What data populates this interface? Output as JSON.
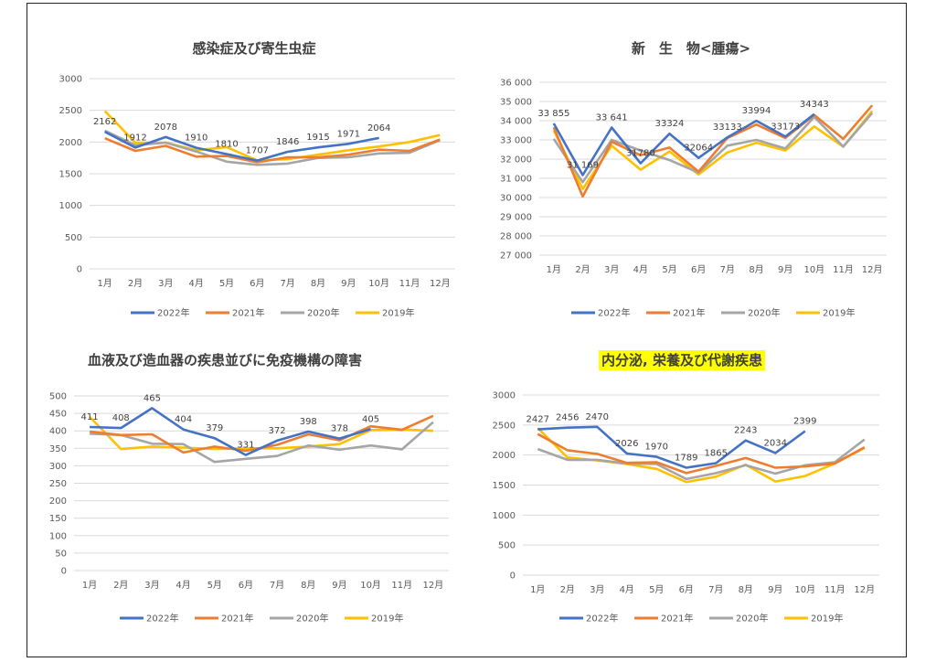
{
  "colors": {
    "2022": "#4472C4",
    "2021": "#ED7D31",
    "2020": "#A5A5A5",
    "2019": "#FFC000",
    "highlight": "#FFFF00"
  },
  "chart_data": [
    {
      "type": "line",
      "title": "感染症及び寄生虫症",
      "categories": [
        "1月",
        "2月",
        "3月",
        "4月",
        "5月",
        "6月",
        "7月",
        "8月",
        "9月",
        "10月",
        "11月",
        "12月"
      ],
      "ylim": [
        0,
        3000
      ],
      "yticks": [
        "0",
        "500",
        "1000",
        "1500",
        "2000",
        "2500",
        "3000"
      ],
      "yticks_values": [
        0,
        500,
        1000,
        1500,
        2000,
        2500,
        3000
      ],
      "grid": true,
      "legend": "bottom",
      "series": [
        {
          "name": "2022年",
          "values": [
            2162,
            1912,
            2078,
            1910,
            1810,
            1707,
            1846,
            1915,
            1971,
            2064,
            null,
            null
          ],
          "labels": [
            "2162",
            "1912",
            "2078",
            "1910",
            "1810",
            "1707",
            "1846",
            "1915",
            "1971",
            "2064",
            "",
            ""
          ]
        },
        {
          "name": "2021年",
          "values": [
            2060,
            1860,
            1940,
            1770,
            1780,
            1680,
            1760,
            1760,
            1800,
            1880,
            1860,
            2040
          ]
        },
        {
          "name": "2020年",
          "values": [
            2180,
            1950,
            1990,
            1850,
            1690,
            1640,
            1660,
            1750,
            1760,
            1820,
            1830,
            2030
          ]
        },
        {
          "name": "2019年",
          "values": [
            2490,
            1990,
            1990,
            1870,
            1920,
            1710,
            1730,
            1800,
            1870,
            1930,
            2000,
            2110
          ]
        }
      ]
    },
    {
      "type": "line",
      "title": "新　生　物<腫瘍>",
      "categories": [
        "1月",
        "2月",
        "3月",
        "4月",
        "5月",
        "6月",
        "7月",
        "8月",
        "9月",
        "10月",
        "11月",
        "12月"
      ],
      "ylim": [
        27000,
        36000
      ],
      "yticks": [
        "27 000",
        "28 000",
        "29 000",
        "30 000",
        "31 000",
        "32 000",
        "33 000",
        "34 000",
        "35 000",
        "36 000"
      ],
      "yticks_values": [
        27000,
        28000,
        29000,
        30000,
        31000,
        32000,
        33000,
        34000,
        35000,
        36000
      ],
      "grid": true,
      "legend": "bottom",
      "series": [
        {
          "name": "2022年",
          "values": [
            33855,
            31169,
            33641,
            31780,
            33324,
            32064,
            33133,
            33994,
            33173,
            34343,
            null,
            null
          ],
          "labels": [
            "33 855",
            "31 169",
            "33 641",
            "31780",
            "33324",
            "32064",
            "33133",
            "33994",
            "33173",
            "34343",
            "",
            ""
          ]
        },
        {
          "name": "2021年",
          "values": [
            33650,
            30050,
            32900,
            32200,
            32600,
            31350,
            33100,
            33800,
            33100,
            34300,
            33050,
            34800
          ]
        },
        {
          "name": "2020年",
          "values": [
            33050,
            30800,
            33000,
            32450,
            31950,
            31300,
            32700,
            33000,
            32550,
            34200,
            32650,
            34400
          ]
        },
        {
          "name": "2019年",
          "values": [
            33500,
            30450,
            32700,
            31450,
            32400,
            31200,
            32350,
            32850,
            32450,
            33700,
            32650,
            34500
          ]
        }
      ]
    },
    {
      "type": "line",
      "title": "血液及び造血器の疾患並びに免疫機構の障害",
      "categories": [
        "1月",
        "2月",
        "3月",
        "4月",
        "5月",
        "6月",
        "7月",
        "8月",
        "9月",
        "10月",
        "11月",
        "12月"
      ],
      "ylim": [
        0,
        500
      ],
      "yticks": [
        "0",
        "50",
        "100",
        "150",
        "200",
        "250",
        "300",
        "350",
        "400",
        "450",
        "500"
      ],
      "yticks_values": [
        0,
        50,
        100,
        150,
        200,
        250,
        300,
        350,
        400,
        450,
        500
      ],
      "grid": true,
      "legend": "bottom",
      "series": [
        {
          "name": "2022年",
          "values": [
            411,
            408,
            465,
            404,
            379,
            331,
            372,
            398,
            378,
            405,
            null,
            null
          ],
          "labels": [
            "411",
            "408",
            "465",
            "404",
            "379",
            "331",
            "372",
            "398",
            "378",
            "405",
            "",
            ""
          ]
        },
        {
          "name": "2021年",
          "values": [
            398,
            388,
            390,
            338,
            355,
            343,
            360,
            390,
            373,
            413,
            403,
            443
          ]
        },
        {
          "name": "2020年",
          "values": [
            392,
            388,
            363,
            362,
            311,
            320,
            328,
            358,
            346,
            358,
            347,
            425
          ]
        },
        {
          "name": "2019年",
          "values": [
            440,
            348,
            355,
            352,
            348,
            350,
            350,
            355,
            362,
            402,
            404,
            400
          ]
        }
      ]
    },
    {
      "type": "line",
      "title": "内分泌, 栄養及び代謝疾患",
      "categories": [
        "1月",
        "2月",
        "3月",
        "4月",
        "5月",
        "6月",
        "7月",
        "8月",
        "9月",
        "10月",
        "11月",
        "12月"
      ],
      "ylim": [
        0,
        3000
      ],
      "yticks": [
        "0",
        "500",
        "1000",
        "1500",
        "2000",
        "2500",
        "3000"
      ],
      "yticks_values": [
        0,
        500,
        1000,
        1500,
        2000,
        2500,
        3000
      ],
      "grid": true,
      "legend": "bottom",
      "series": [
        {
          "name": "2022年",
          "values": [
            2427,
            2456,
            2470,
            2026,
            1970,
            1789,
            1865,
            2243,
            2034,
            2399,
            null,
            null
          ],
          "labels": [
            "2427",
            "2456",
            "2470",
            "2026",
            "1970",
            "1789",
            "1865",
            "2243",
            "2034",
            "2399",
            "",
            ""
          ]
        },
        {
          "name": "2021年",
          "values": [
            2350,
            2080,
            2020,
            1870,
            1880,
            1700,
            1820,
            1950,
            1790,
            1810,
            1860,
            2130
          ]
        },
        {
          "name": "2020年",
          "values": [
            2100,
            1920,
            1920,
            1860,
            1850,
            1600,
            1700,
            1830,
            1690,
            1830,
            1880,
            2260
          ]
        },
        {
          "name": "2019年",
          "values": [
            2450,
            1960,
            1910,
            1850,
            1770,
            1550,
            1640,
            1840,
            1560,
            1650,
            1860,
            2120
          ]
        }
      ]
    }
  ]
}
